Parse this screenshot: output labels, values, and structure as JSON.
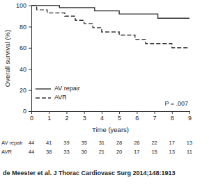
{
  "chart_data": {
    "type": "step",
    "x_label": "Time (years)",
    "y_label": "Overall survival (%)",
    "xlim": [
      0,
      9
    ],
    "xticks": [
      0,
      1,
      2,
      3,
      4,
      5,
      6,
      7,
      8,
      9
    ],
    "ylim": [
      0,
      100
    ],
    "yticks": [
      0,
      20,
      40,
      60,
      80,
      100
    ],
    "grid": false,
    "legend": "lower left",
    "series": [
      {
        "name": "AV repair",
        "color": "#333333",
        "line_style": "solid",
        "x": [
          0,
          1.6,
          3.6,
          5.0,
          7.2,
          9
        ],
        "values": [
          100,
          98,
          95,
          92,
          88,
          88
        ]
      },
      {
        "name": "AVR",
        "color": "#333333",
        "line_style": "dashed",
        "x": [
          0,
          0.3,
          0.9,
          1.9,
          2.5,
          3.0,
          3.5,
          4.0,
          5.0,
          5.9,
          6.5,
          8.0,
          9
        ],
        "values": [
          100,
          96,
          93,
          90,
          86,
          83,
          79,
          75,
          72,
          68,
          64,
          60,
          60
        ]
      }
    ],
    "annotations": [
      "P = .007"
    ],
    "risk_table": {
      "x": [
        0,
        1,
        2,
        3,
        4,
        5,
        6,
        7,
        8,
        9
      ],
      "rows": [
        {
          "name": "AV repair",
          "values": [
            44,
            41,
            39,
            35,
            31,
            28,
            26,
            22,
            17,
            13
          ]
        },
        {
          "name": "AVR",
          "values": [
            44,
            38,
            33,
            30,
            21,
            20,
            17,
            15,
            13,
            11
          ]
        }
      ]
    },
    "caption": "de Meester et al. J Thorac Cardiovasc Surg 2014;148:1913"
  }
}
